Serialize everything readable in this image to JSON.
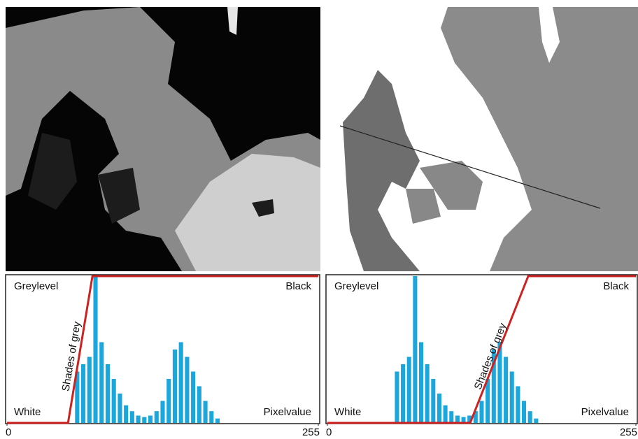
{
  "chart_data": [
    {
      "type": "histogram",
      "bins": [
        0,
        5,
        10,
        15,
        20,
        25,
        30,
        35,
        40,
        45,
        50,
        55,
        60,
        65,
        70,
        75,
        80,
        85,
        90,
        95,
        100,
        105,
        110,
        115,
        120,
        125,
        130,
        135,
        140,
        145,
        150,
        155,
        160,
        165,
        170,
        175,
        180,
        185,
        190,
        195,
        200,
        205,
        210,
        215,
        220,
        225,
        230,
        235,
        240,
        245,
        250,
        255
      ],
      "counts": [
        0,
        0,
        0,
        0,
        0,
        0,
        0,
        0,
        0,
        0,
        0,
        35,
        40,
        45,
        100,
        55,
        40,
        30,
        20,
        12,
        8,
        5,
        4,
        5,
        8,
        15,
        30,
        50,
        55,
        45,
        35,
        25,
        15,
        8,
        3,
        0,
        0,
        0,
        0,
        0,
        0,
        0,
        0,
        0,
        0,
        0,
        0,
        0,
        0,
        0,
        0
      ],
      "color": "#1ba7dc",
      "transfer": {
        "x": [
          0,
          50,
          70,
          255
        ],
        "y": [
          0,
          0,
          100,
          100
        ],
        "color": "#cc2222"
      },
      "annotations": [
        "Greylevel",
        "Black",
        "White",
        "Pixelvalue",
        "Shades of grey"
      ],
      "xlim": [
        0,
        255
      ],
      "ylim": [
        0,
        100
      ],
      "xticks": [
        0,
        255
      ]
    },
    {
      "type": "histogram",
      "bins": [
        0,
        5,
        10,
        15,
        20,
        25,
        30,
        35,
        40,
        45,
        50,
        55,
        60,
        65,
        70,
        75,
        80,
        85,
        90,
        95,
        100,
        105,
        110,
        115,
        120,
        125,
        130,
        135,
        140,
        145,
        150,
        155,
        160,
        165,
        170,
        175,
        180,
        185,
        190,
        195,
        200,
        205,
        210,
        215,
        220,
        225,
        230,
        235,
        240,
        245,
        250,
        255
      ],
      "counts": [
        0,
        0,
        0,
        0,
        0,
        0,
        0,
        0,
        0,
        0,
        0,
        35,
        40,
        45,
        100,
        55,
        40,
        30,
        20,
        12,
        8,
        5,
        4,
        5,
        8,
        15,
        30,
        50,
        55,
        45,
        35,
        25,
        15,
        8,
        3,
        0,
        0,
        0,
        0,
        0,
        0,
        0,
        0,
        0,
        0,
        0,
        0,
        0,
        0,
        0,
        0
      ],
      "color": "#1ba7dc",
      "transfer": {
        "x": [
          0,
          118,
          166,
          255
        ],
        "y": [
          0,
          0,
          100,
          100
        ],
        "color": "#cc2222"
      },
      "annotations": [
        "Greylevel",
        "Black",
        "White",
        "Pixelvalue",
        "Shades of grey"
      ],
      "xlim": [
        0,
        255
      ],
      "ylim": [
        0,
        100
      ],
      "xticks": [
        0,
        255
      ]
    }
  ]
}
